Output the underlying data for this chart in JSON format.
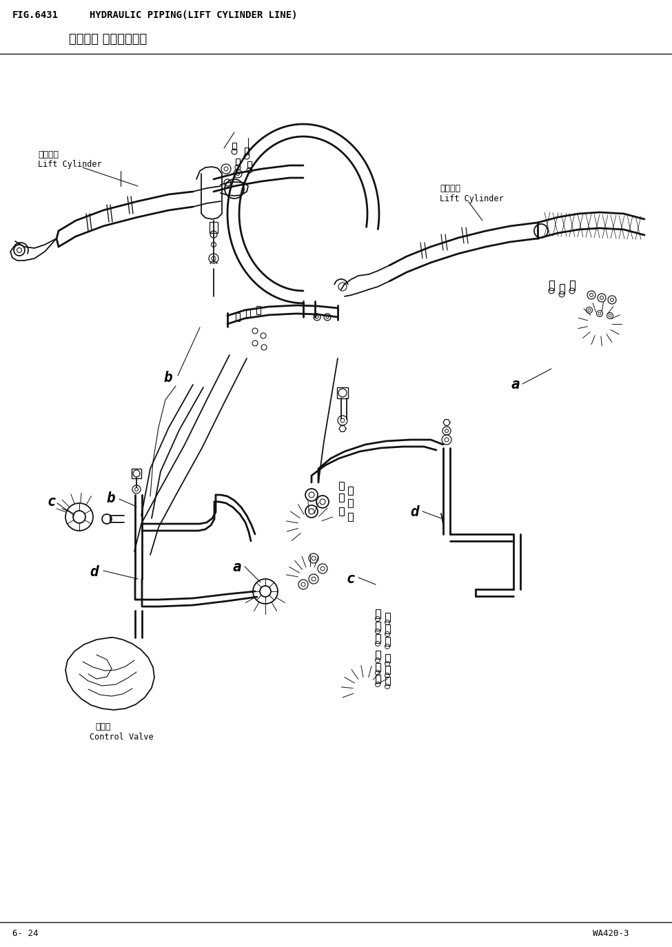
{
  "fig_number": "FIG.6431",
  "title_en": "HYDRAULIC PIPING(LIFT CYLINDER LINE)",
  "title_zh": "液压管路 举升油缸管路",
  "page_left": "6- 24",
  "page_right": "WA420-3",
  "bg_color": "#ffffff",
  "label_lift_cyl_zh_L": "举升油缸",
  "label_lift_cyl_en_L": "Lift Cylinder",
  "label_lift_cyl_zh_R": "举升油缸",
  "label_lift_cyl_en_R": "Lift Cylinder",
  "label_ctrl_zh": "控制阀",
  "label_ctrl_en": "Control Valve",
  "figsize": [
    9.75,
    13.74
  ],
  "dpi": 100
}
